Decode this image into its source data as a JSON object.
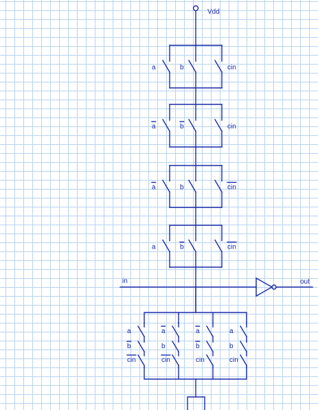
{
  "diagram": {
    "supply_label": "Vdd",
    "input_label": "in",
    "output_label": "out",
    "pull_up_stages": [
      {
        "left": "a",
        "left_bar": false,
        "mid": "b",
        "mid_bar": false,
        "right": "cin",
        "right_bar": false
      },
      {
        "left": "a",
        "left_bar": true,
        "mid": "b",
        "mid_bar": true,
        "right": "cin",
        "right_bar": false
      },
      {
        "left": "a",
        "left_bar": true,
        "mid": "b",
        "mid_bar": false,
        "right": "cin",
        "right_bar": true
      },
      {
        "left": "a",
        "left_bar": false,
        "mid": "b",
        "mid_bar": true,
        "right": "cin",
        "right_bar": true
      }
    ],
    "pull_down_columns": [
      {
        "top": "a",
        "top_bar": false,
        "mid": "b",
        "mid_bar": true,
        "bottom": "cin",
        "bottom_bar": true
      },
      {
        "top": "a",
        "top_bar": true,
        "mid": "b",
        "mid_bar": false,
        "bottom": "cin",
        "bottom_bar": true
      },
      {
        "top": "a",
        "top_bar": true,
        "mid": "b",
        "mid_bar": true,
        "bottom": "cin",
        "bottom_bar": false
      },
      {
        "top": "a",
        "top_bar": false,
        "mid": "b",
        "mid_bar": false,
        "bottom": "cin",
        "bottom_bar": false
      }
    ],
    "colors": {
      "wire": "#1a2aa8",
      "grid": "#b7d3f1",
      "background": "#ffffff"
    }
  }
}
